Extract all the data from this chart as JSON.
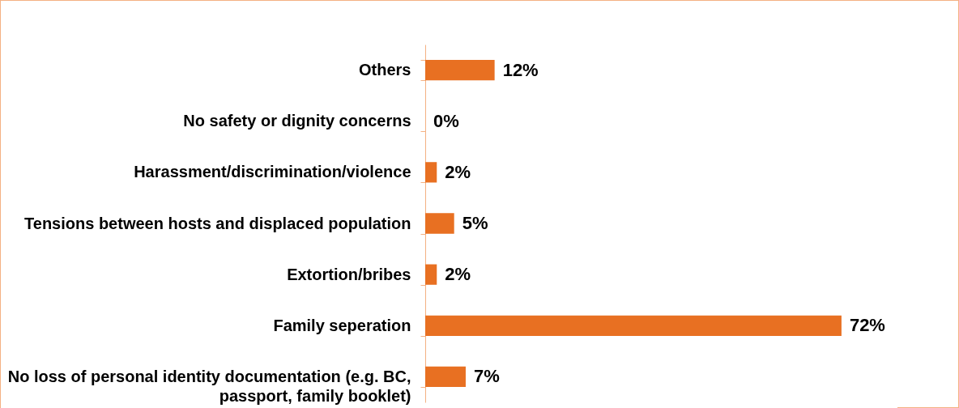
{
  "chart_data": {
    "type": "bar",
    "orientation": "horizontal",
    "categories": [
      "Others",
      "No safety or dignity concerns",
      "Harassment/discrimination/violence",
      "Tensions between hosts and displaced population",
      "Extortion/bribes",
      "Family seperation",
      "No loss of personal identity documentation (e.g. BC, passport, family booklet)"
    ],
    "values": [
      12,
      0,
      2,
      5,
      2,
      72,
      7
    ],
    "value_labels": [
      "12%",
      "0%",
      "2%",
      "5%",
      "2%",
      "72%",
      "7%"
    ],
    "color": "#e87022"
  }
}
